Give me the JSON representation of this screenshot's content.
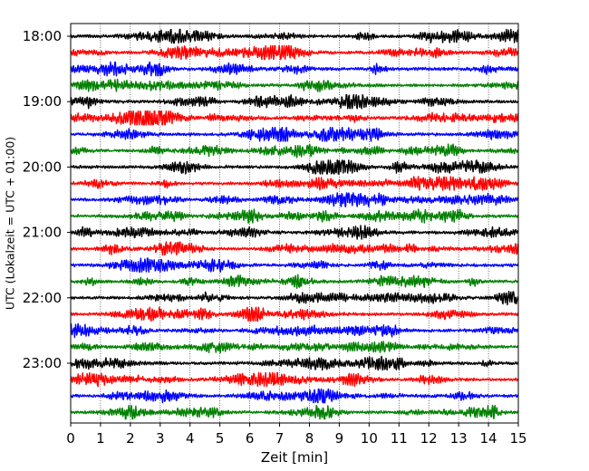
{
  "chart_data": {
    "type": "line",
    "title": "",
    "xlabel": "Zeit  [min]",
    "ylabel": "UTC (Lokalzeit = UTC + 01:00)",
    "xlim": [
      0,
      15
    ],
    "x_ticks": [
      0,
      1,
      2,
      3,
      4,
      5,
      6,
      7,
      8,
      9,
      10,
      11,
      12,
      13,
      14,
      15
    ],
    "y_tick_labels": [
      "18:00",
      "19:00",
      "20:00",
      "21:00",
      "22:00",
      "23:00"
    ],
    "start_hour": 18,
    "end_hour": 24,
    "trace_interval_min": 15,
    "grid": true,
    "line_colors": [
      "#000000",
      "#ff0000",
      "#0000ff",
      "#008000"
    ],
    "traces": [
      {
        "time": "18:00",
        "color": "#000000"
      },
      {
        "time": "18:15",
        "color": "#ff0000"
      },
      {
        "time": "18:30",
        "color": "#0000ff"
      },
      {
        "time": "18:45",
        "color": "#008000"
      },
      {
        "time": "19:00",
        "color": "#000000"
      },
      {
        "time": "19:15",
        "color": "#ff0000"
      },
      {
        "time": "19:30",
        "color": "#0000ff"
      },
      {
        "time": "19:45",
        "color": "#008000"
      },
      {
        "time": "20:00",
        "color": "#000000"
      },
      {
        "time": "20:15",
        "color": "#ff0000"
      },
      {
        "time": "20:30",
        "color": "#0000ff"
      },
      {
        "time": "20:45",
        "color": "#008000"
      },
      {
        "time": "21:00",
        "color": "#000000"
      },
      {
        "time": "21:15",
        "color": "#ff0000"
      },
      {
        "time": "21:30",
        "color": "#0000ff"
      },
      {
        "time": "21:45",
        "color": "#008000"
      },
      {
        "time": "22:00",
        "color": "#000000"
      },
      {
        "time": "22:15",
        "color": "#ff0000"
      },
      {
        "time": "22:30",
        "color": "#0000ff"
      },
      {
        "time": "22:45",
        "color": "#008000"
      },
      {
        "time": "23:00",
        "color": "#000000"
      },
      {
        "time": "23:15",
        "color": "#ff0000"
      },
      {
        "time": "23:30",
        "color": "#0000ff"
      },
      {
        "time": "23:45",
        "color": "#008000"
      }
    ]
  }
}
